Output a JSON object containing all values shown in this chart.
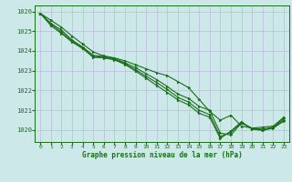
{
  "title": "Graphe pression niveau de la mer (hPa)",
  "bg_color": "#cce8e8",
  "grid_color": "#bbbbdd",
  "line_color": "#1a6e1a",
  "marker_color": "#1a6e1a",
  "xlim": [
    -0.5,
    23.5
  ],
  "ylim": [
    1019.4,
    1026.3
  ],
  "yticks": [
    1020,
    1021,
    1022,
    1023,
    1024,
    1025,
    1026
  ],
  "xticks": [
    0,
    1,
    2,
    3,
    4,
    5,
    6,
    7,
    8,
    9,
    10,
    11,
    12,
    13,
    14,
    15,
    16,
    17,
    18,
    19,
    20,
    21,
    22,
    23
  ],
  "series": [
    [
      1025.9,
      1025.55,
      1025.2,
      1024.75,
      1024.35,
      1023.95,
      1023.75,
      1023.65,
      1023.5,
      1023.3,
      1023.1,
      1022.9,
      1022.75,
      1022.45,
      1022.15,
      1021.55,
      1020.95,
      1020.5,
      1020.75,
      1020.2,
      1020.1,
      1020.15,
      1020.2,
      1020.65
    ],
    [
      1025.9,
      1025.4,
      1025.05,
      1024.55,
      1024.2,
      1023.78,
      1023.72,
      1023.62,
      1023.4,
      1023.15,
      1022.85,
      1022.55,
      1022.2,
      1021.82,
      1021.6,
      1021.2,
      1021.0,
      1019.85,
      1019.75,
      1020.35,
      1020.1,
      1020.05,
      1020.15,
      1020.6
    ],
    [
      1025.9,
      1025.35,
      1024.95,
      1024.5,
      1024.15,
      1023.72,
      1023.68,
      1023.58,
      1023.35,
      1023.05,
      1022.72,
      1022.4,
      1022.05,
      1021.65,
      1021.42,
      1021.0,
      1020.78,
      1019.68,
      1019.88,
      1020.38,
      1020.08,
      1020.0,
      1020.12,
      1020.52
    ],
    [
      1025.9,
      1025.28,
      1024.88,
      1024.45,
      1024.12,
      1023.68,
      1023.65,
      1023.55,
      1023.32,
      1022.98,
      1022.62,
      1022.25,
      1021.9,
      1021.52,
      1021.28,
      1020.85,
      1020.65,
      1019.58,
      1019.95,
      1020.42,
      1020.05,
      1019.98,
      1020.1,
      1020.45
    ]
  ]
}
